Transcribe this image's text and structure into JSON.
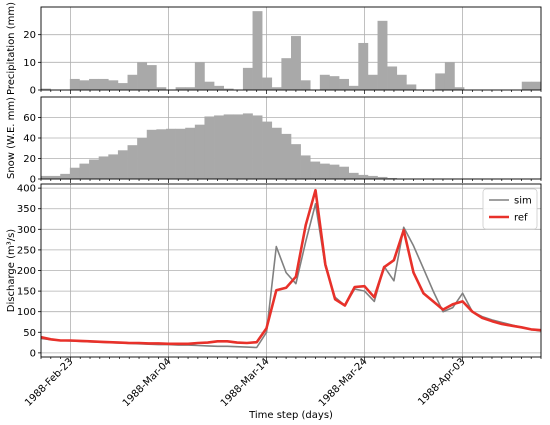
{
  "chart_data": [
    {
      "type": "bar",
      "ylabel": "Precipitation (mm)",
      "ylim": [
        0,
        30
      ],
      "yticks": [
        0,
        10,
        20
      ],
      "grid": true,
      "bar_color": "#a9a9a9",
      "values": [
        0.5,
        0,
        0,
        4,
        3.5,
        4,
        4,
        3.5,
        2.5,
        5.5,
        10,
        9,
        1,
        0,
        1,
        1,
        10,
        3,
        1.5,
        0.5,
        0,
        8,
        28.5,
        4.5,
        1,
        11.5,
        19.5,
        3.5,
        0,
        5.5,
        5,
        4,
        1.5,
        17,
        5.5,
        25,
        8.5,
        5.5,
        2,
        0,
        0,
        6,
        10,
        1,
        0,
        0,
        0,
        0,
        0,
        0,
        3,
        3
      ]
    },
    {
      "type": "bar",
      "ylabel": "Snow (W.E. mm)",
      "ylim": [
        0,
        80
      ],
      "yticks": [
        0,
        20,
        40,
        60
      ],
      "grid": true,
      "bar_color": "#a9a9a9",
      "values": [
        3,
        3,
        5,
        11,
        15,
        19,
        22,
        24,
        28,
        33,
        40,
        48,
        48.5,
        49,
        49,
        50,
        53,
        61,
        62,
        63,
        63,
        64,
        62,
        56,
        50,
        44,
        34,
        23,
        17,
        15,
        14,
        12,
        6,
        4,
        3,
        2,
        1,
        0.5,
        0.5,
        0.5,
        0.5,
        0.5,
        0.5,
        0.5,
        0.5,
        0.5,
        0.5,
        0.5,
        0.5,
        0.5,
        0.5,
        0.5
      ]
    },
    {
      "type": "line",
      "ylabel": "Discharge (m³/s)",
      "xlabel": "Time step (days)",
      "ylim": [
        -10,
        410
      ],
      "yticks": [
        0,
        50,
        100,
        150,
        200,
        250,
        300,
        350,
        400
      ],
      "grid": true,
      "legend": "top-right",
      "x_tick_labels": [
        "1988-Feb-23",
        "1988-Mar-04",
        "1988-Mar-14",
        "1988-Mar-24",
        "1988-Apr-03"
      ],
      "series": [
        {
          "name": "sim",
          "color": "#808080",
          "values": [
            35,
            32,
            30,
            29,
            28,
            27,
            26,
            25,
            24,
            23,
            22,
            21,
            20,
            20,
            19,
            19,
            18,
            17,
            16,
            16,
            15,
            14,
            13,
            50,
            258,
            195,
            168,
            270,
            362,
            210,
            135,
            115,
            155,
            150,
            125,
            210,
            175,
            305,
            260,
            205,
            150,
            100,
            110,
            145,
            100,
            88,
            80,
            74,
            68,
            62,
            57,
            53
          ]
        },
        {
          "name": "ref",
          "color": "#e8312a",
          "values": [
            38,
            33,
            30,
            30,
            29,
            28,
            27,
            26,
            25,
            24,
            24,
            23,
            23,
            22,
            22,
            22,
            24,
            25,
            28,
            28,
            25,
            24,
            26,
            60,
            152,
            158,
            185,
            310,
            395,
            215,
            130,
            115,
            160,
            162,
            135,
            208,
            225,
            298,
            195,
            145,
            125,
            105,
            118,
            125,
            100,
            85,
            77,
            70,
            66,
            62,
            57,
            55
          ]
        }
      ]
    }
  ]
}
